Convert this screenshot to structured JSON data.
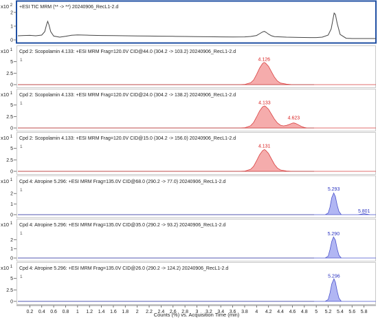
{
  "panels": [
    {
      "scale_label": "x10 2",
      "title": "+ESI TIC MRM (** -> **) 20240906_RecL1-2.d",
      "marker": "",
      "y_ticks": [
        "2",
        "1",
        "0"
      ],
      "ylim": [
        0,
        2
      ],
      "highlighted": true,
      "peak_labels": []
    },
    {
      "scale_label": "x10 1",
      "title": "Cpd 2: Scopolamin 4.133: +ESI MRM Frag=120.0V CID@44.0 (304.2 -> 103.2) 20240906_RecL1-2.d",
      "marker": "1",
      "y_ticks": [
        "5",
        "2.5",
        "0"
      ],
      "ylim": [
        0,
        6
      ],
      "highlighted": false,
      "peak_labels": [
        {
          "x": 4.126,
          "y": 5.0,
          "text": "4.126"
        }
      ]
    },
    {
      "scale_label": "x10 1",
      "title": "Cpd 2: Scopolamin 4.133: +ESI MRM Frag=120.0V CID@24.0 (304.2 -> 138.2) 20240906_RecL1-2.d",
      "marker": "1",
      "y_ticks": [
        "5",
        "2.5",
        "0"
      ],
      "ylim": [
        0,
        6
      ],
      "highlighted": false,
      "peak_labels": [
        {
          "x": 4.133,
          "y": 5.0,
          "text": "4.133"
        },
        {
          "x": 4.623,
          "y": 1.7,
          "text": "4.623"
        }
      ]
    },
    {
      "scale_label": "x10 1",
      "title": "Cpd 2: Scopolamin 4.133: +ESI MRM Frag=120.0V CID@15.0 (304.2 -> 156.0) 20240906_RecL1-2.d",
      "marker": "1",
      "y_ticks": [
        "5",
        "2.5",
        "0"
      ],
      "ylim": [
        0,
        6
      ],
      "highlighted": false,
      "peak_labels": [
        {
          "x": 4.131,
          "y": 5.0,
          "text": "4.131"
        }
      ]
    },
    {
      "scale_label": "x10 1",
      "title": "Cpd 4: Atropine 5.296: +ESI MRM Frag=135.0V CID@68.0 (290.2 -> 77.0) 20240906_RecL1-2.d",
      "marker": "1",
      "y_ticks": [
        "2",
        "1",
        "0"
      ],
      "ylim": [
        0,
        2.6
      ],
      "highlighted": false,
      "peak_labels": [
        {
          "x": 5.293,
          "y": 2.2,
          "text": "5.293"
        },
        {
          "x": 5.801,
          "y": 0.12,
          "text": "5.801"
        }
      ]
    },
    {
      "scale_label": "x10 1",
      "title": "Cpd 4: Atropine 5.296: +ESI MRM Frag=135.0V CID@35.0 (290.2 -> 93.2) 20240906_RecL1-2.d",
      "marker": "1",
      "y_ticks": [
        "2",
        "1",
        "0"
      ],
      "ylim": [
        0,
        3
      ],
      "highlighted": false,
      "peak_labels": [
        {
          "x": 5.29,
          "y": 2.4,
          "text": "5.290"
        }
      ]
    },
    {
      "scale_label": "x10 1",
      "title": "Cpd 4: Atropine 5.296: +ESI MRM Frag=135.0V CID@26.0 (290.2 -> 124.2) 20240906_RecL1-2.d",
      "marker": "1",
      "y_ticks": [
        "5",
        "2.5",
        "0"
      ],
      "ylim": [
        0,
        6
      ],
      "highlighted": false,
      "peak_labels": [
        {
          "x": 5.296,
          "y": 5.0,
          "text": "5.296"
        }
      ]
    }
  ],
  "x_axis": {
    "label": "Counts (%) vs. Acquisition Time (min)",
    "ticks": [
      "0.2",
      "0.4",
      "0.6",
      "0.8",
      "1",
      "1.2",
      "1.4",
      "1.6",
      "1.8",
      "2",
      "2.2",
      "2.4",
      "2.6",
      "2.8",
      "3",
      "3.2",
      "3.4",
      "3.6",
      "3.8",
      "4",
      "4.2",
      "4.4",
      "4.6",
      "4.8",
      "5",
      "5.2",
      "5.4",
      "5.6",
      "5.8"
    ]
  },
  "colors": {
    "tic_line": "#444444",
    "scopolamine_fill": "#f4a3a3",
    "scopolamine_line": "#d94040",
    "scopolamine_label": "#d92020",
    "atropine_fill": "#a9aef2",
    "atropine_line": "#4a52cc",
    "atropine_label": "#2a32c0",
    "highlight_border": "#1f4fa3",
    "frame": "#c8c8c8"
  },
  "chart_data": [
    {
      "type": "line",
      "title": "+ESI TIC MRM (** -> **) 20240906_RecL1-2.d",
      "xlabel": "Counts (%) vs. Acquisition Time (min)",
      "ylabel": "",
      "y_multiplier": "x10 2",
      "xlim": [
        0,
        6.0
      ],
      "ylim": [
        0,
        2
      ],
      "series": [
        {
          "x": [
            0.0,
            0.1,
            0.2,
            0.3,
            0.4,
            0.45,
            0.48,
            0.5,
            0.52,
            0.55,
            0.6,
            0.7,
            0.8,
            0.9,
            1.0,
            1.2,
            1.4,
            1.6,
            1.8,
            2.0,
            2.2,
            2.4,
            2.6,
            2.8,
            3.0,
            3.2,
            3.4,
            3.6,
            3.8,
            3.9,
            4.0,
            4.05,
            4.1,
            4.13,
            4.16,
            4.2,
            4.25,
            4.3,
            4.5,
            4.7,
            4.9,
            5.0,
            5.1,
            5.2,
            5.25,
            5.28,
            5.3,
            5.32,
            5.35,
            5.4,
            5.5,
            5.6,
            5.7,
            5.8,
            5.9,
            6.0
          ],
          "y": [
            0.3,
            0.32,
            0.33,
            0.3,
            0.35,
            0.6,
            1.1,
            1.35,
            1.1,
            0.6,
            0.28,
            0.2,
            0.26,
            0.34,
            0.36,
            0.34,
            0.32,
            0.31,
            0.3,
            0.29,
            0.28,
            0.27,
            0.26,
            0.25,
            0.24,
            0.23,
            0.22,
            0.21,
            0.22,
            0.25,
            0.32,
            0.45,
            0.58,
            0.62,
            0.55,
            0.42,
            0.3,
            0.24,
            0.2,
            0.18,
            0.17,
            0.17,
            0.2,
            0.35,
            0.8,
            1.5,
            1.95,
            1.85,
            1.2,
            0.4,
            0.12,
            0.1,
            0.1,
            0.1,
            0.1,
            0.1
          ]
        }
      ]
    },
    {
      "type": "area",
      "title": "Cpd 2: Scopolamin 4.133: +ESI MRM Frag=120.0V CID@44.0 (304.2 -> 103.2) 20240906_RecL1-2.d",
      "y_multiplier": "x10 1",
      "xlim": [
        0,
        6.0
      ],
      "ylim": [
        0,
        6
      ],
      "series": [
        {
          "x": [
            0.0,
            3.7,
            3.8,
            3.9,
            3.95,
            4.0,
            4.05,
            4.1,
            4.126,
            4.15,
            4.2,
            4.25,
            4.3,
            4.35,
            4.4,
            4.5,
            4.6,
            6.0
          ],
          "y": [
            0.0,
            0.0,
            0.05,
            0.4,
            1.0,
            2.2,
            3.6,
            4.6,
            4.85,
            4.7,
            4.0,
            2.8,
            1.6,
            0.8,
            0.35,
            0.1,
            0.0,
            0.0
          ]
        }
      ],
      "annotations": [
        "4.126"
      ]
    },
    {
      "type": "area",
      "title": "Cpd 2: Scopolamin 4.133: +ESI MRM Frag=120.0V CID@24.0 (304.2 -> 138.2) 20240906_RecL1-2.d",
      "y_multiplier": "x10 1",
      "xlim": [
        0,
        6.0
      ],
      "ylim": [
        0,
        6
      ],
      "series": [
        {
          "x": [
            0.0,
            3.7,
            3.8,
            3.9,
            3.95,
            4.0,
            4.05,
            4.1,
            4.133,
            4.15,
            4.2,
            4.25,
            4.3,
            4.35,
            4.4,
            4.45,
            4.5,
            4.55,
            4.6,
            4.623,
            4.65,
            4.7,
            4.75,
            4.8,
            4.85,
            6.0
          ],
          "y": [
            0.0,
            0.0,
            0.05,
            0.5,
            1.2,
            2.4,
            3.7,
            4.6,
            4.8,
            4.7,
            4.1,
            3.0,
            1.9,
            1.1,
            0.6,
            0.45,
            0.55,
            0.8,
            1.05,
            1.1,
            1.0,
            0.7,
            0.35,
            0.1,
            0.0,
            0.0
          ]
        }
      ],
      "annotations": [
        "4.133",
        "4.623"
      ]
    },
    {
      "type": "area",
      "title": "Cpd 2: Scopolamin 4.133: +ESI MRM Frag=120.0V CID@15.0 (304.2 -> 156.0) 20240906_RecL1-2.d",
      "y_multiplier": "x10 1",
      "xlim": [
        0,
        6.0
      ],
      "ylim": [
        0,
        6
      ],
      "series": [
        {
          "x": [
            0.0,
            3.7,
            3.8,
            3.9,
            3.95,
            4.0,
            4.05,
            4.1,
            4.131,
            4.15,
            4.2,
            4.25,
            4.3,
            4.35,
            4.4,
            4.5,
            4.6,
            6.0
          ],
          "y": [
            0.0,
            0.0,
            0.05,
            0.45,
            1.1,
            2.3,
            3.6,
            4.5,
            4.75,
            4.6,
            3.9,
            2.7,
            1.5,
            0.7,
            0.3,
            0.08,
            0.0,
            0.0
          ]
        }
      ],
      "annotations": [
        "4.131"
      ]
    },
    {
      "type": "area",
      "title": "Cpd 4: Atropine 5.296: +ESI MRM Frag=135.0V CID@68.0 (290.2 -> 77.0) 20240906_RecL1-2.d",
      "y_multiplier": "x10 1",
      "xlim": [
        0,
        6.0
      ],
      "ylim": [
        0,
        2.6
      ],
      "series": [
        {
          "x": [
            0.0,
            5.15,
            5.2,
            5.23,
            5.26,
            5.293,
            5.32,
            5.35,
            5.38,
            5.42,
            5.7,
            5.76,
            5.801,
            5.84,
            5.9,
            6.0
          ],
          "y": [
            0.0,
            0.0,
            0.15,
            0.7,
            1.6,
            2.05,
            1.7,
            0.9,
            0.3,
            0.0,
            0.0,
            0.06,
            0.1,
            0.05,
            0.0,
            0.0
          ]
        }
      ],
      "annotations": [
        "5.293",
        "5.801"
      ]
    },
    {
      "type": "area",
      "title": "Cpd 4: Atropine 5.296: +ESI MRM Frag=135.0V CID@35.0 (290.2 -> 93.2) 20240906_RecL1-2.d",
      "y_multiplier": "x10 1",
      "xlim": [
        0,
        6.0
      ],
      "ylim": [
        0,
        3
      ],
      "series": [
        {
          "x": [
            0.0,
            5.15,
            5.2,
            5.23,
            5.26,
            5.29,
            5.32,
            5.35,
            5.38,
            5.42,
            6.0
          ],
          "y": [
            0.0,
            0.0,
            0.2,
            0.9,
            1.8,
            2.3,
            1.95,
            1.0,
            0.3,
            0.0,
            0.0
          ]
        }
      ],
      "annotations": [
        "5.290"
      ]
    },
    {
      "type": "area",
      "title": "Cpd 4: Atropine 5.296: +ESI MRM Frag=135.0V CID@26.0 (290.2 -> 124.2) 20240906_RecL1-2.d",
      "y_multiplier": "x10 1",
      "xlim": [
        0,
        6.0
      ],
      "ylim": [
        0,
        6
      ],
      "series": [
        {
          "x": [
            0.0,
            5.15,
            5.2,
            5.23,
            5.26,
            5.296,
            5.32,
            5.35,
            5.38,
            5.42,
            6.0
          ],
          "y": [
            0.0,
            0.0,
            0.4,
            1.8,
            3.8,
            4.9,
            4.2,
            2.2,
            0.7,
            0.0,
            0.0
          ]
        }
      ],
      "annotations": [
        "5.296"
      ]
    }
  ]
}
